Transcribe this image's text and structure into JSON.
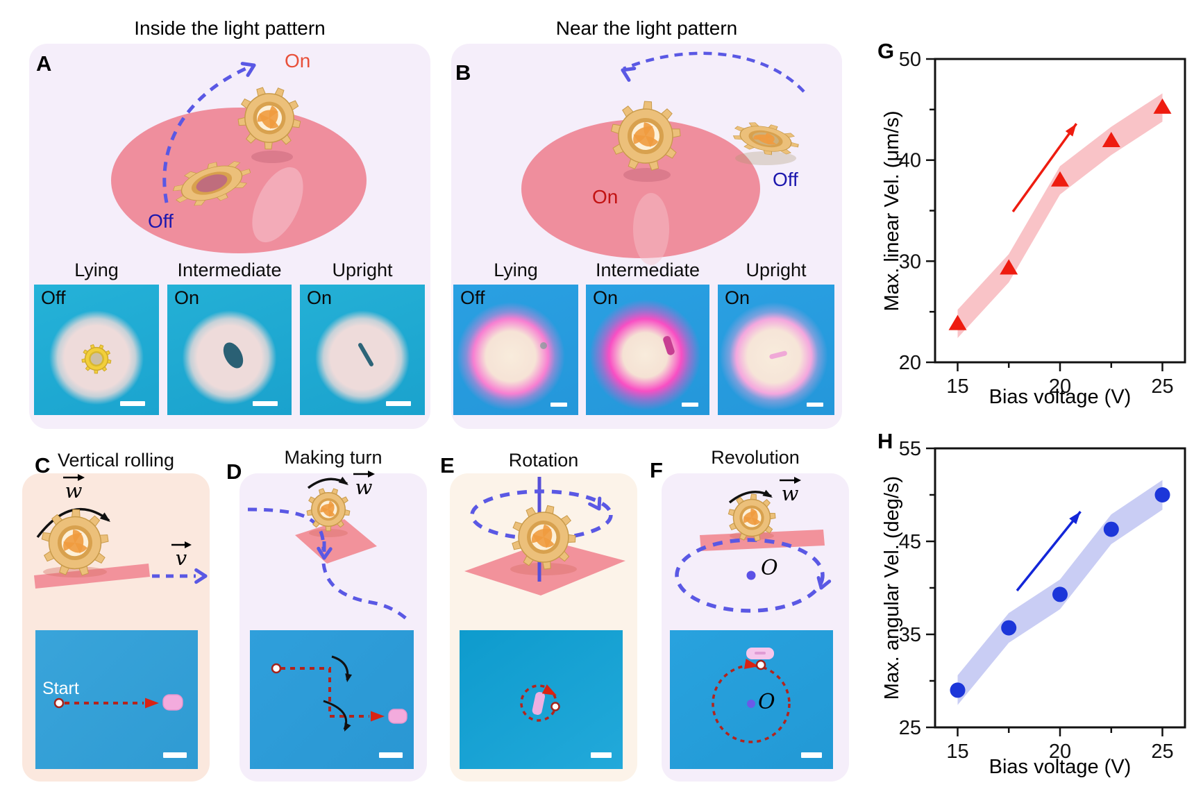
{
  "panels": {
    "a": {
      "letter": "A",
      "title": "Inside the light pattern",
      "on": "On",
      "off": "Off",
      "micro": [
        {
          "label": "Lying",
          "state": "Off"
        },
        {
          "label": "Intermediate",
          "state": "On"
        },
        {
          "label": "Upright",
          "state": "On"
        }
      ]
    },
    "b": {
      "letter": "B",
      "title": "Near the light pattern",
      "on": "On",
      "off": "Off",
      "micro": [
        {
          "label": "Lying",
          "state": "Off"
        },
        {
          "label": "Intermediate",
          "state": "On"
        },
        {
          "label": "Upright",
          "state": "On"
        }
      ]
    },
    "c": {
      "letter": "C",
      "title": "Vertical rolling",
      "omega": "w",
      "velocity": "v",
      "start_label": "Start"
    },
    "d": {
      "letter": "D",
      "title": "Making turn",
      "omega": "w"
    },
    "e": {
      "letter": "E",
      "title": "Rotation"
    },
    "f": {
      "letter": "F",
      "title": "Revolution",
      "omega": "w",
      "center_label": "O",
      "micro_center_label": "O"
    }
  },
  "colors": {
    "light_pattern_pink": "#ef8e9d",
    "plane_pink": "#f2929b",
    "dashed_blue": "#5a58e4",
    "traj_dark_red": "#b3241c",
    "arrow_red": "#d92313",
    "on_red_a": "#e8503a",
    "on_red_b": "#c21212",
    "off_navy": "#1c17ad",
    "gear_gold": "#ecc07a"
  },
  "chart_data": [
    {
      "panel_label": "G",
      "type": "line",
      "marker": "triangle",
      "x": [
        15,
        17.5,
        20,
        22.5,
        25
      ],
      "y": [
        23.8,
        29.3,
        38.0,
        41.9,
        45.2
      ],
      "xlabel": "Bias voltage (V)",
      "ylabel": "Max. linear Vel. (μm/s)",
      "xlim": [
        13.9,
        26.1
      ],
      "ylim": [
        20,
        50
      ],
      "xticks": [
        15,
        20,
        25
      ],
      "yticks": [
        20,
        30,
        40,
        50
      ],
      "xticks_minor": [
        17.5,
        22.5
      ],
      "yticks_minor": [
        25,
        35,
        45
      ],
      "grid": false,
      "legend": null,
      "marker_color": "#ee1c10",
      "band_color": "#f9c3c7",
      "band_halfwidth": 1.4,
      "trend_arrow": {
        "x1": 17.7,
        "y1": 34.9,
        "x2": 20.8,
        "y2": 43.6,
        "color": "#ee1c10"
      }
    },
    {
      "panel_label": "H",
      "type": "line",
      "marker": "circle",
      "x": [
        15,
        17.5,
        20,
        22.5,
        25
      ],
      "y": [
        29.0,
        35.7,
        39.3,
        46.3,
        50.0
      ],
      "xlabel": "Bias voltage (V)",
      "ylabel": "Max. angular Vel. (deg/s)",
      "xlim": [
        13.9,
        26.1
      ],
      "ylim": [
        25,
        55
      ],
      "xticks": [
        15,
        20,
        25
      ],
      "yticks": [
        25,
        35,
        45,
        55
      ],
      "xticks_minor": [
        17.5,
        22.5
      ],
      "yticks_minor": [
        30,
        40,
        50
      ],
      "grid": false,
      "legend": null,
      "marker_color": "#1c36d9",
      "band_color": "#c9cdf4",
      "band_halfwidth": 1.6,
      "trend_arrow": {
        "x1": 17.9,
        "y1": 39.7,
        "x2": 21.0,
        "y2": 48.2,
        "color": "#1326d8"
      }
    }
  ]
}
